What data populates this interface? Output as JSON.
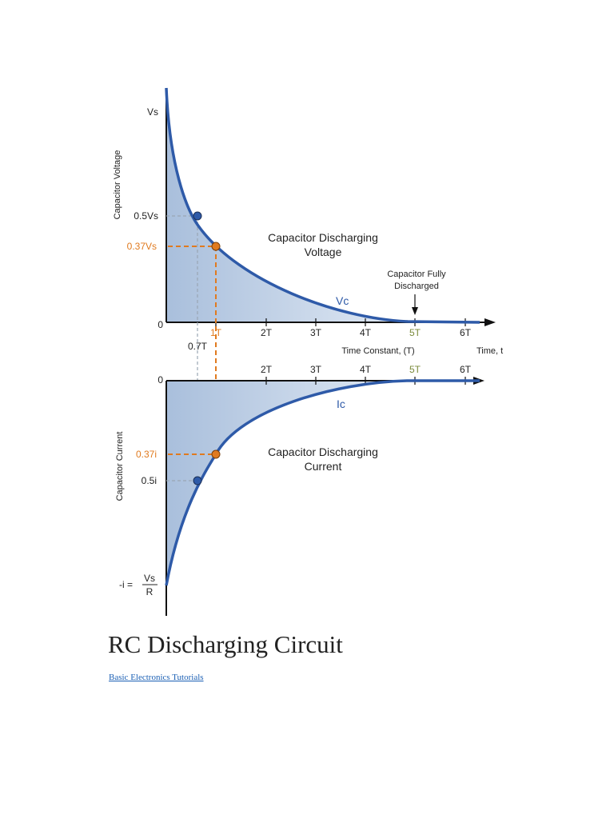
{
  "figure": {
    "voltage_panel": {
      "y_axis_label": "Capacitor Voltage",
      "y_ticks": {
        "top": "Vs",
        "half": "0.5Vs",
        "e": "0.37Vs",
        "zero": "0"
      },
      "curve_title_line1": "Capacitor Discharging",
      "curve_title_line2": "Voltage",
      "curve_label": "Vc",
      "annotation_line1": "Capacitor Fully",
      "annotation_line2": "Discharged",
      "x_ticks": [
        "1T",
        "2T",
        "3T",
        "4T",
        "5T",
        "6T"
      ],
      "x_extra_tick": "0.7T",
      "x_axis_label": "Time Constant, (T)",
      "x_axis_end_label": "Time, t"
    },
    "current_panel": {
      "y_axis_label": "Capacitor Current",
      "y_ticks": {
        "zero": "0",
        "e": "0.37i",
        "half": "0.5i"
      },
      "initial_prefix": "-i =",
      "initial_num": "Vs",
      "initial_den": "R",
      "curve_title_line1": "Capacitor Discharging",
      "curve_title_line2": "Current",
      "curve_label": "Ic",
      "x_ticks": [
        "2T",
        "3T",
        "4T",
        "5T",
        "6T"
      ]
    },
    "colors": {
      "curve": "#2e5aa8",
      "fill_dark": "#a9bfdc",
      "fill_light": "#f2f6fb",
      "marker_orange": "#e07a1f",
      "marker_blue": "#2e5aa8",
      "guide_gray": "#9aa6b4",
      "five_t_green": "#7a8a3a"
    }
  },
  "title": "RC Discharging Circuit",
  "link": "Basic Electronics Tutorials",
  "chart_data": {
    "type": "line",
    "x_unit": "time constants (T)",
    "x": [
      0,
      0.7,
      1,
      2,
      3,
      4,
      5,
      6
    ],
    "series": [
      {
        "name": "Vc",
        "values": [
          1.0,
          0.5,
          0.37,
          0.135,
          0.05,
          0.018,
          0.0,
          0.0
        ]
      },
      {
        "name": "Ic",
        "values": [
          -1.0,
          -0.5,
          -0.37,
          -0.135,
          -0.05,
          -0.018,
          0.0,
          0.0
        ]
      }
    ]
  }
}
